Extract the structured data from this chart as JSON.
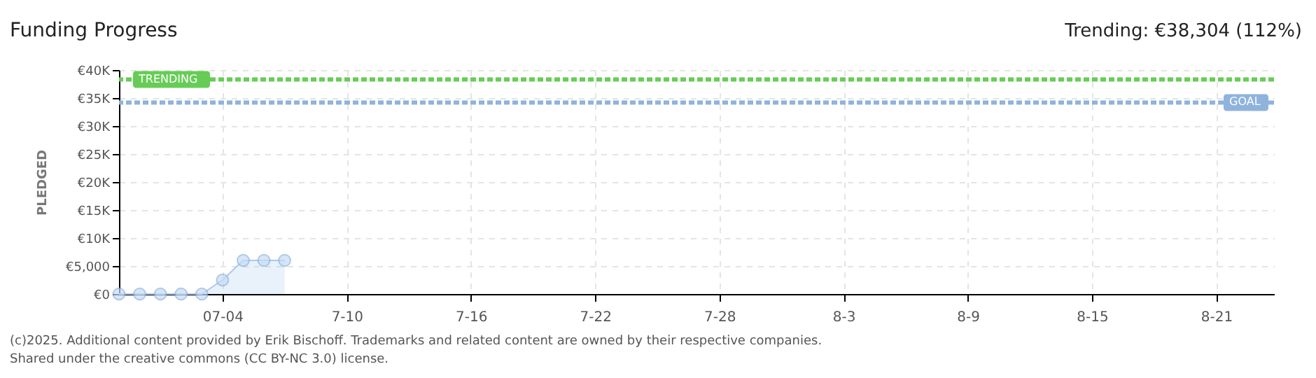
{
  "chart_data": {
    "type": "area",
    "title": "Funding Progress",
    "subtitle": "Trending: €38,304 (112%)",
    "ylabel": "PLEDGED",
    "x": [
      "2025-06-29",
      "2025-06-30",
      "2025-07-01",
      "2025-07-02",
      "2025-07-03",
      "2025-07-04",
      "2025-07-05",
      "2025-07-06",
      "2025-07-07"
    ],
    "series": [
      {
        "color": "#a9c9ef",
        "values": [
          0,
          0,
          0,
          0,
          0,
          2500,
          6000,
          6000,
          6000
        ]
      }
    ],
    "marker": "circle",
    "xlim": [
      "2025-06-29",
      "2025-08-23T19:00"
    ],
    "xticks": [
      {
        "value": "2025-07-04",
        "label": "07-04"
      },
      {
        "value": "2025-07-10",
        "label": "7-10"
      },
      {
        "value": "2025-07-16",
        "label": "7-16"
      },
      {
        "value": "2025-07-22",
        "label": "7-22"
      },
      {
        "value": "2025-07-28",
        "label": "7-28"
      },
      {
        "value": "2025-08-03",
        "label": "8-3"
      },
      {
        "value": "2025-08-09",
        "label": "8-9"
      },
      {
        "value": "2025-08-15",
        "label": "8-15"
      },
      {
        "value": "2025-08-21",
        "label": "8-21"
      }
    ],
    "ylim": [
      0,
      40000
    ],
    "yticks": [
      {
        "value": 0,
        "label": "€0"
      },
      {
        "value": 5000,
        "label": "€5,000"
      },
      {
        "value": 10000,
        "label": "€10K"
      },
      {
        "value": 15000,
        "label": "€15K"
      },
      {
        "value": 20000,
        "label": "€20K"
      },
      {
        "value": 25000,
        "label": "€25K"
      },
      {
        "value": 30000,
        "label": "€30K"
      },
      {
        "value": 35000,
        "label": "€35K"
      },
      {
        "value": 40000,
        "label": "€40K"
      }
    ],
    "ref_lines": [
      {
        "axis": "y",
        "value": 38304,
        "label": "TRENDING",
        "color": "#66cc55",
        "line_style": "dashed"
      },
      {
        "axis": "y",
        "value": 34200,
        "label": "GOAL",
        "color": "#8fb3dd",
        "line_style": "dashed"
      }
    ],
    "grid": true,
    "annotations": [
      "(c)2025. Additional content provided by Erik Bischoff. Trademarks and related content are owned by their respective companies.",
      "Shared under the creative commons (CC BY-NC 3.0) license."
    ]
  }
}
